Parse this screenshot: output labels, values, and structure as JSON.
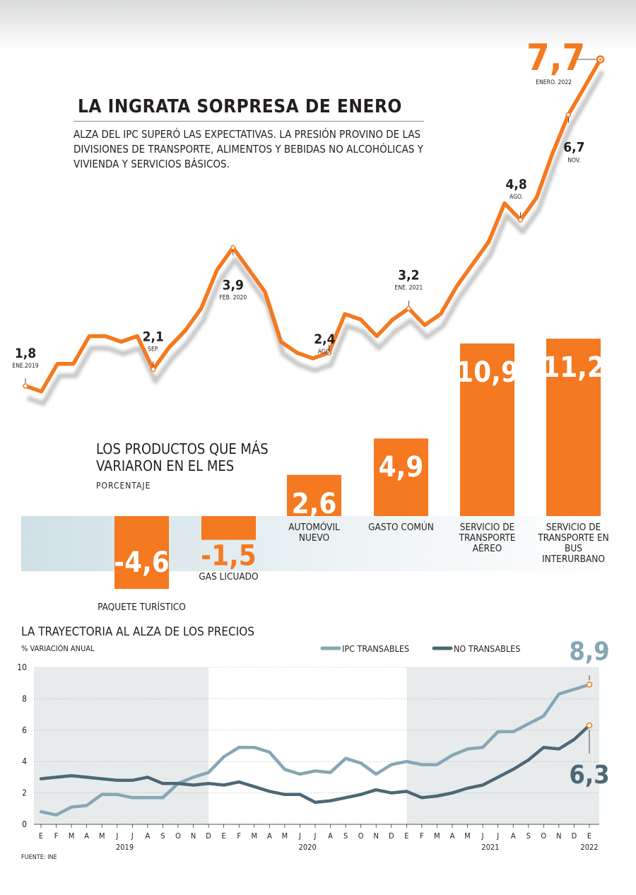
{
  "header": {
    "title": "LA INGRATA SORPRESA DE ENERO",
    "subtitle": "ALZA DEL IPC SUPERÓ LAS EXPECTATIVAS. LA PRESIÓN PROVINO DE LAS DIVISIONES DE TRANSPORTE, ALIMENTOS Y BEBIDAS NO ALCOHÓLICAS Y VIVIENDA Y SERVICIOS BÁSICOS."
  },
  "footer": {
    "source": "FUENTE: INE"
  },
  "colors": {
    "orange": "#f47920",
    "light_blue": "#86a7b4",
    "dark_blue": "#4d6876",
    "shade": "#e8ebec"
  },
  "chart_data": [
    {
      "type": "line",
      "title": "",
      "series": [
        {
          "name": "",
          "values": [
            1.8,
            1.7,
            2.2,
            2.2,
            2.7,
            2.7,
            2.6,
            2.7,
            2.1,
            2.5,
            2.8,
            3.2,
            3.9,
            4.3,
            3.9,
            3.5,
            2.6,
            2.4,
            2.3,
            2.4,
            3.1,
            3.0,
            2.7,
            3.0,
            3.2,
            2.9,
            3.1,
            3.6,
            4.0,
            4.4,
            5.1,
            4.8,
            5.2,
            6.0,
            6.7,
            7.2,
            7.7
          ]
        }
      ],
      "annotations": [
        {
          "index": 0,
          "value": "1,8",
          "label": "ENE.2019"
        },
        {
          "index": 8,
          "value": "2,1",
          "label": "SEP."
        },
        {
          "index": 13,
          "value": "3,9",
          "label": "FEB. 2020"
        },
        {
          "index": 19,
          "value": "2,4",
          "label": "AGO."
        },
        {
          "index": 24,
          "value": "3,2",
          "label": "ENE. 2021"
        },
        {
          "index": 31,
          "value": "4,8",
          "label": "AGO."
        },
        {
          "index": 34,
          "value": "6,7",
          "label": "NOV."
        },
        {
          "index": 36,
          "value": "7,7",
          "label": "ENERO. 2022"
        }
      ]
    },
    {
      "type": "bar",
      "title": "LOS PRODUCTOS QUE MÁS VARIARON EN EL MES",
      "ylabel": "PORCENTAJE",
      "categories": [
        "PAQUETE TURÍSTICO",
        "GAS LICUADO",
        "AUTOMÓVIL NUEVO",
        "GASTO COMÚN",
        "SERVICIO DE TRANSPORTE AÉREO",
        "SERVICIO DE TRANSPORTE EN BUS INTERURBANO"
      ],
      "values": [
        -4.6,
        -1.5,
        2.6,
        4.9,
        10.9,
        11.2
      ],
      "value_labels": [
        "-4,6",
        "-1,5",
        "2,6",
        "4,9",
        "10,9",
        "11,2"
      ]
    },
    {
      "type": "line",
      "title": "LA TRAYECTORIA AL ALZA DE LOS PRECIOS",
      "ylabel": "% VARIACIÓN ANUAL",
      "ylim": [
        0,
        10
      ],
      "y_ticks": [
        "0",
        "2",
        "4",
        "6",
        "8",
        "10"
      ],
      "month_labels": [
        "E",
        "F",
        "M",
        "A",
        "M",
        "J",
        "J",
        "A",
        "S",
        "O",
        "N",
        "D",
        "E",
        "F",
        "M",
        "A",
        "M",
        "J",
        "J",
        "A",
        "S",
        "O",
        "N",
        "D",
        "E",
        "F",
        "M",
        "A",
        "M",
        "J",
        "J",
        "A",
        "S",
        "O",
        "N",
        "D",
        "E"
      ],
      "year_labels": [
        "2019",
        "2020",
        "2021",
        "2022"
      ],
      "legend_position": "top-right",
      "series": [
        {
          "name": "IPC TRANSABLES",
          "color": "#86a7b4",
          "values": [
            0.8,
            0.6,
            1.1,
            1.2,
            1.9,
            1.9,
            1.7,
            1.7,
            1.7,
            2.6,
            3.0,
            3.3,
            4.3,
            4.9,
            4.9,
            4.6,
            3.5,
            3.2,
            3.4,
            3.3,
            4.2,
            3.9,
            3.2,
            3.8,
            4.0,
            3.8,
            3.8,
            4.4,
            4.8,
            4.9,
            5.9,
            5.9,
            6.4,
            6.9,
            8.3,
            8.6,
            8.9
          ],
          "end_label": "8,9"
        },
        {
          "name": "NO TRANSABLES",
          "color": "#4d6876",
          "values": [
            2.9,
            3.0,
            3.1,
            3.0,
            2.9,
            2.8,
            2.8,
            3.0,
            2.6,
            2.6,
            2.5,
            2.6,
            2.5,
            2.7,
            2.4,
            2.1,
            1.9,
            1.9,
            1.4,
            1.5,
            1.7,
            1.9,
            2.2,
            2.0,
            2.1,
            1.7,
            1.8,
            2.0,
            2.3,
            2.5,
            3.0,
            3.5,
            4.1,
            4.9,
            4.8,
            5.4,
            6.3
          ],
          "end_label": "6,3"
        }
      ]
    }
  ]
}
